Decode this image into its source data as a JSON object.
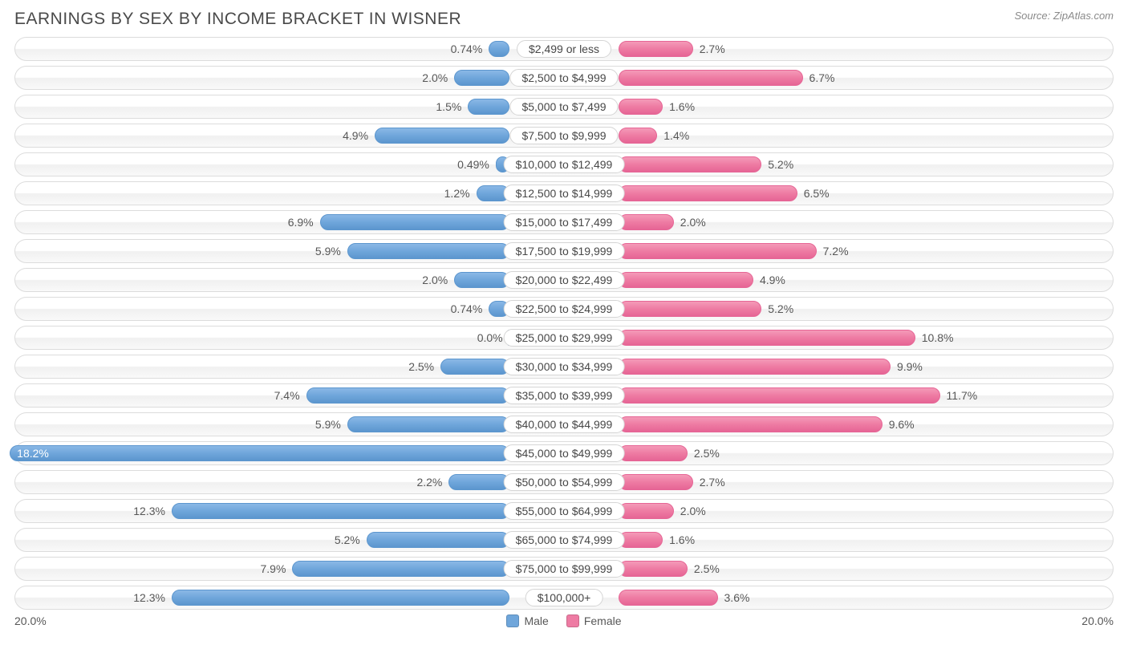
{
  "title": "EARNINGS BY SEX BY INCOME BRACKET IN WISNER",
  "source": "Source: ZipAtlas.com",
  "axis_max_pct": 20.0,
  "axis_label_left": "20.0%",
  "axis_label_right": "20.0%",
  "legend": {
    "male_label": "Male",
    "female_label": "Female"
  },
  "colors": {
    "male_bar": "#6fa6db",
    "female_bar": "#ee7ba3",
    "row_border": "#dcdcdc",
    "text": "#4a4a4a",
    "background": "#ffffff"
  },
  "label_half_width_pct": 10.0,
  "rows": [
    {
      "category": "$2,499 or less",
      "male": 0.74,
      "male_label": "0.74%",
      "female": 2.7,
      "female_label": "2.7%"
    },
    {
      "category": "$2,500 to $4,999",
      "male": 2.0,
      "male_label": "2.0%",
      "female": 6.7,
      "female_label": "6.7%"
    },
    {
      "category": "$5,000 to $7,499",
      "male": 1.5,
      "male_label": "1.5%",
      "female": 1.6,
      "female_label": "1.6%"
    },
    {
      "category": "$7,500 to $9,999",
      "male": 4.9,
      "male_label": "4.9%",
      "female": 1.4,
      "female_label": "1.4%"
    },
    {
      "category": "$10,000 to $12,499",
      "male": 0.49,
      "male_label": "0.49%",
      "female": 5.2,
      "female_label": "5.2%"
    },
    {
      "category": "$12,500 to $14,999",
      "male": 1.2,
      "male_label": "1.2%",
      "female": 6.5,
      "female_label": "6.5%"
    },
    {
      "category": "$15,000 to $17,499",
      "male": 6.9,
      "male_label": "6.9%",
      "female": 2.0,
      "female_label": "2.0%"
    },
    {
      "category": "$17,500 to $19,999",
      "male": 5.9,
      "male_label": "5.9%",
      "female": 7.2,
      "female_label": "7.2%"
    },
    {
      "category": "$20,000 to $22,499",
      "male": 2.0,
      "male_label": "2.0%",
      "female": 4.9,
      "female_label": "4.9%"
    },
    {
      "category": "$22,500 to $24,999",
      "male": 0.74,
      "male_label": "0.74%",
      "female": 5.2,
      "female_label": "5.2%"
    },
    {
      "category": "$25,000 to $29,999",
      "male": 0.0,
      "male_label": "0.0%",
      "female": 10.8,
      "female_label": "10.8%"
    },
    {
      "category": "$30,000 to $34,999",
      "male": 2.5,
      "male_label": "2.5%",
      "female": 9.9,
      "female_label": "9.9%"
    },
    {
      "category": "$35,000 to $39,999",
      "male": 7.4,
      "male_label": "7.4%",
      "female": 11.7,
      "female_label": "11.7%"
    },
    {
      "category": "$40,000 to $44,999",
      "male": 5.9,
      "male_label": "5.9%",
      "female": 9.6,
      "female_label": "9.6%"
    },
    {
      "category": "$45,000 to $49,999",
      "male": 18.2,
      "male_label": "18.2%",
      "female": 2.5,
      "female_label": "2.5%"
    },
    {
      "category": "$50,000 to $54,999",
      "male": 2.2,
      "male_label": "2.2%",
      "female": 2.7,
      "female_label": "2.7%"
    },
    {
      "category": "$55,000 to $64,999",
      "male": 12.3,
      "male_label": "12.3%",
      "female": 2.0,
      "female_label": "2.0%"
    },
    {
      "category": "$65,000 to $74,999",
      "male": 5.2,
      "male_label": "5.2%",
      "female": 1.6,
      "female_label": "1.6%"
    },
    {
      "category": "$75,000 to $99,999",
      "male": 7.9,
      "male_label": "7.9%",
      "female": 2.5,
      "female_label": "2.5%"
    },
    {
      "category": "$100,000+",
      "male": 12.3,
      "male_label": "12.3%",
      "female": 3.6,
      "female_label": "3.6%"
    }
  ]
}
